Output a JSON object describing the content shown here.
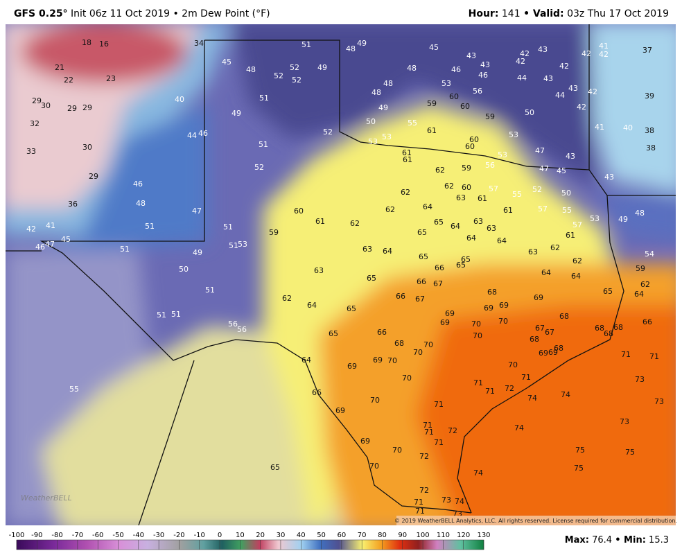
{
  "header": {
    "model": "GFS 0.25°",
    "init": "Init 06z 11 Oct 2019 • 2m Dew Point (°F)",
    "hour_label": "Hour:",
    "hour": "141",
    "valid_label": "• Valid:",
    "valid": "03z Thu 17 Oct 2019"
  },
  "footer": {
    "max_label": "Max:",
    "max": "76.4",
    "min_label": "• Min:",
    "min": "15.3"
  },
  "map": {
    "logo": "WeatherBELL",
    "copyright": "© 2019 WeatherBELL Analytics, LLC. All rights reserved. License required for commercial distribution.",
    "labels": [
      18,
      16,
      34,
      51,
      48,
      49,
      45,
      43,
      42,
      43,
      42,
      42,
      41,
      37,
      21,
      22,
      23,
      45,
      48,
      52,
      52,
      52,
      49,
      48,
      46,
      43,
      46,
      42,
      44,
      43,
      42,
      53,
      48,
      48,
      56,
      60,
      60,
      59,
      59,
      50,
      43,
      44,
      42,
      42,
      39,
      29,
      30,
      29,
      29,
      40,
      51,
      49,
      50,
      55,
      61,
      53,
      53,
      52,
      49,
      32,
      44,
      46,
      41,
      40,
      38,
      38,
      33,
      30,
      51,
      60,
      60,
      53,
      61,
      61,
      53,
      56,
      47,
      43,
      47,
      45,
      43,
      52,
      62,
      59,
      29,
      46,
      62,
      60,
      57,
      55,
      52,
      50,
      62,
      63,
      61,
      36,
      48,
      47,
      60,
      62,
      64,
      61,
      57,
      55,
      53,
      49,
      48,
      57,
      42,
      41,
      51,
      51,
      61,
      62,
      65,
      64,
      63,
      63,
      65,
      64,
      64,
      61,
      59,
      46,
      45,
      47,
      51,
      49,
      51,
      53,
      63,
      64,
      65,
      65,
      65,
      66,
      63,
      62,
      62,
      54,
      50,
      63,
      65,
      66,
      67,
      64,
      64,
      59,
      62,
      51,
      62,
      64,
      65,
      66,
      67,
      68,
      69,
      65,
      64,
      51,
      51,
      69,
      69,
      69,
      68,
      66,
      56,
      56,
      69,
      70,
      70,
      67,
      67,
      68,
      68,
      68,
      65,
      66,
      70,
      68,
      68,
      70,
      70,
      69,
      69,
      68,
      64,
      69,
      69,
      70,
      70,
      71,
      71,
      55,
      70,
      71,
      71,
      73,
      66,
      71,
      72,
      74,
      74,
      70,
      71,
      73,
      69,
      71,
      71,
      72,
      74,
      73,
      69,
      71,
      70,
      72,
      75,
      75,
      65,
      70,
      75,
      74,
      72,
      71,
      73,
      74,
      73,
      71
    ]
  },
  "colorbar": {
    "ticks": [
      -100,
      -90,
      -80,
      -70,
      -60,
      -50,
      -40,
      -30,
      -20,
      -10,
      0,
      10,
      20,
      30,
      40,
      50,
      60,
      70,
      80,
      90,
      100,
      110,
      120,
      130
    ]
  }
}
